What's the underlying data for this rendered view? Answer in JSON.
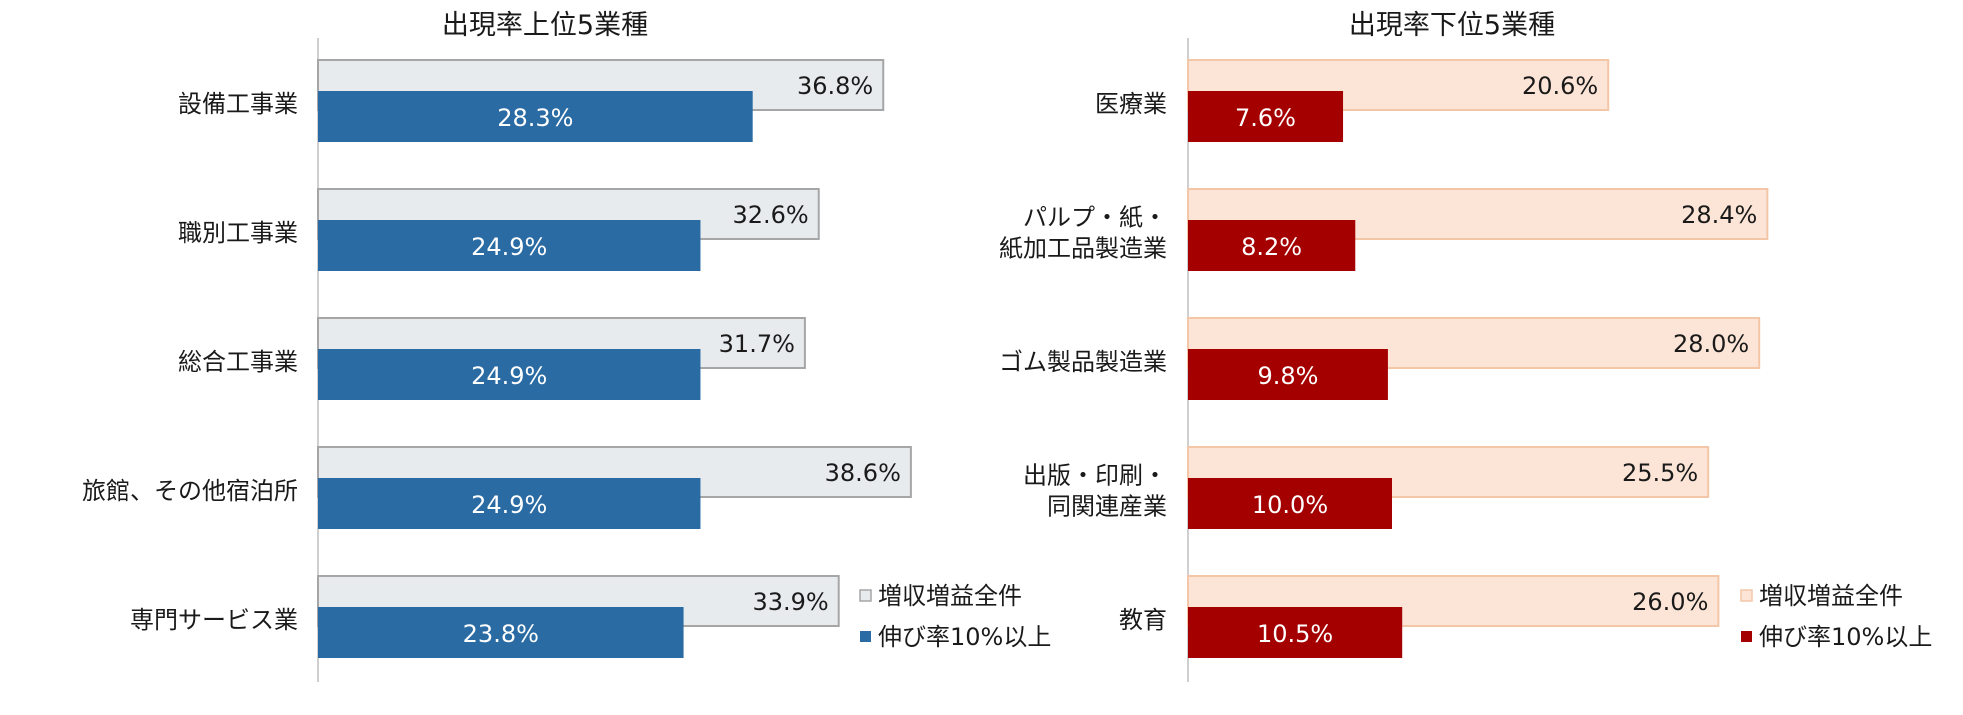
{
  "colors": {
    "left_outer_fill": "#E8EBEE",
    "left_outer_stroke": "#A6A6A6",
    "left_inner": "#2A6BA3",
    "right_outer_fill": "#FCE4D6",
    "right_outer_stroke": "#F4C6A8",
    "right_inner": "#A50000",
    "axis": "#BFBFBF"
  },
  "chart_data": [
    {
      "type": "bar",
      "orientation": "horizontal",
      "title": "出現率上位5業種",
      "categories": [
        "設備工事業",
        "職別工事業",
        "総合工事業",
        "旅館、その他宿泊所",
        "専門サービス業"
      ],
      "series": [
        {
          "name": "増収増益全件",
          "values": [
            36.8,
            32.6,
            31.7,
            38.6,
            33.9
          ],
          "labels": [
            "36.8%",
            "32.6%",
            "31.7%",
            "38.6%",
            "33.9%"
          ]
        },
        {
          "name": "伸び率10%以上",
          "values": [
            28.3,
            24.9,
            24.9,
            24.9,
            23.8
          ],
          "labels": [
            "28.3%",
            "24.9%",
            "24.9%",
            "24.9%",
            "23.8%"
          ]
        }
      ],
      "legend": "bottom-right"
    },
    {
      "type": "bar",
      "orientation": "horizontal",
      "title": "出現率下位5業種",
      "categories": [
        "医療業",
        "パルプ・紙・\n紙加工品製造業",
        "ゴム製品製造業",
        "出版・印刷・\n同関連産業",
        "教育"
      ],
      "series": [
        {
          "name": "増収増益全件",
          "values": [
            20.6,
            28.4,
            28.0,
            25.5,
            26.0
          ],
          "labels": [
            "20.6%",
            "28.4%",
            "28.0%",
            "25.5%",
            "26.0%"
          ]
        },
        {
          "name": "伸び率10%以上",
          "values": [
            7.6,
            8.2,
            9.8,
            10.0,
            10.5
          ],
          "labels": [
            "7.6%",
            "8.2%",
            "9.8%",
            "10.0%",
            "10.5%"
          ]
        }
      ],
      "legend": "bottom-right"
    }
  ]
}
